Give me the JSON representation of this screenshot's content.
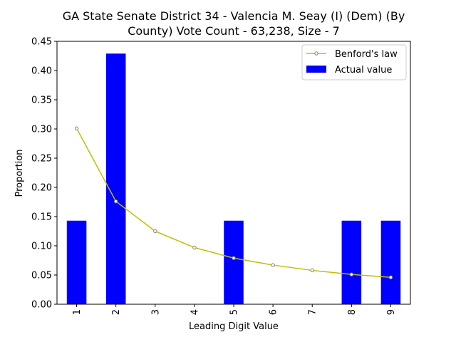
{
  "chart_data": {
    "type": "bar",
    "title_line1": "GA State Senate District 34 - Valencia M. Seay (I) (Dem) (By",
    "title_line2": "County) Vote Count - 63,238, Size - 7",
    "xlabel": "Leading Digit Value",
    "ylabel": "Proportion",
    "categories": [
      "1",
      "2",
      "3",
      "4",
      "5",
      "6",
      "7",
      "8",
      "9"
    ],
    "ylim": [
      0,
      0.45
    ],
    "yticks": [
      "0.00",
      "0.05",
      "0.10",
      "0.15",
      "0.20",
      "0.25",
      "0.30",
      "0.35",
      "0.40",
      "0.45"
    ],
    "grid": false,
    "legend_position": "top-right",
    "series": [
      {
        "name": "Actual value",
        "type": "bar",
        "color": "#0000ff",
        "values": [
          0.143,
          0.429,
          0,
          0,
          0.143,
          0,
          0,
          0.143,
          0.143
        ]
      },
      {
        "name": "Benford's law",
        "type": "line",
        "color": "#bfbf00",
        "marker": "circle",
        "values": [
          0.301,
          0.176,
          0.125,
          0.097,
          0.079,
          0.067,
          0.058,
          0.051,
          0.046
        ]
      }
    ]
  }
}
